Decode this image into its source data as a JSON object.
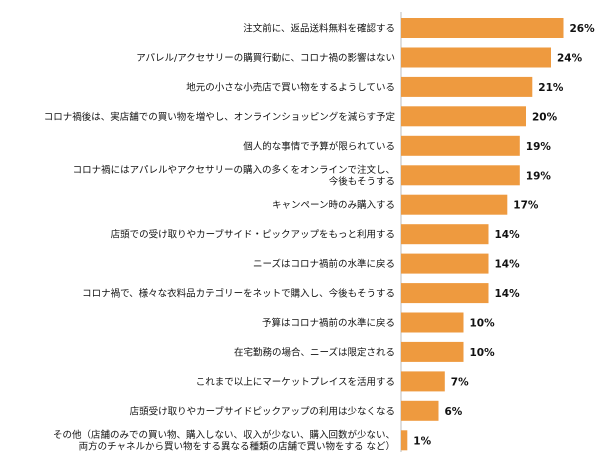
{
  "chart_data": {
    "type": "bar",
    "orientation": "horizontal",
    "title": "",
    "xlabel": "",
    "ylabel": "",
    "xlim": [
      0,
      30
    ],
    "grid": false,
    "bar_color": "#EE9A3F",
    "categories": [
      [
        "注文前に、返品送料無料を確認する"
      ],
      [
        "アパレル/アクセサリーの購買行動に、コロナ禍の影響はない"
      ],
      [
        "地元の小さな小売店で買い物をするようしている"
      ],
      [
        "コロナ禍後は、実店舗での買い物を増やし、オンラインショッピングを減らす予定"
      ],
      [
        "個人的な事情で予算が限られている"
      ],
      [
        "コロナ禍にはアパレルやアクセサリーの購入の多くをオンラインで注文し、",
        "今後もそうする"
      ],
      [
        "キャンペーン時のみ購入する"
      ],
      [
        "店頭での受け取りやカーブサイド・ピックアップをもっと利用する"
      ],
      [
        "ニーズはコロナ禍前の水準に戻る"
      ],
      [
        "コロナ禍で、様々な衣料品カテゴリーをネットで購入し、今後もそうする"
      ],
      [
        "予算はコロナ禍前の水準に戻る"
      ],
      [
        "在宅勤務の場合、ニーズは限定される"
      ],
      [
        "これまで以上にマーケットプレイスを活用する"
      ],
      [
        "店頭受け取りやカーブサイドピックアップの利用は少なくなる"
      ],
      [
        "その他（店舗のみでの買い物、購入しない、収入が少ない、購入回数が少ない、",
        "両方のチャネルから買い物をする異なる種類の店舗で買い物をする など）"
      ]
    ],
    "values": [
      26,
      24,
      21,
      20,
      19,
      19,
      17,
      14,
      14,
      14,
      10,
      10,
      7,
      6,
      1
    ],
    "value_labels": [
      "26%",
      "24%",
      "21%",
      "20%",
      "19%",
      "19%",
      "17%",
      "14%",
      "14%",
      "14%",
      "10%",
      "10%",
      "7%",
      "6%",
      "1%"
    ]
  }
}
